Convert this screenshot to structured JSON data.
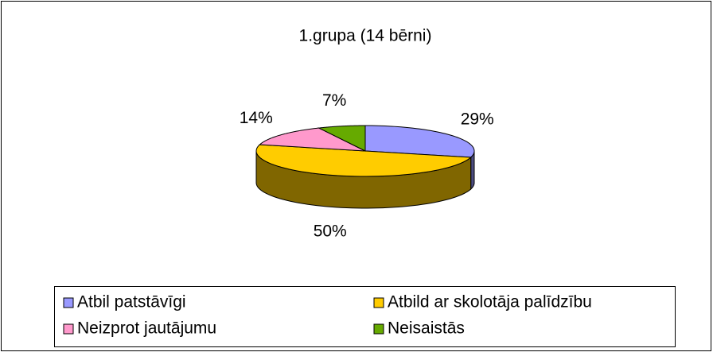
{
  "chart_data": {
    "type": "pie",
    "title": "1.grupa (14 bērni)",
    "categories": [
      "Atbil patstāvīgi",
      "Atbild ar skolotāja palīdzību",
      "Neizprot jautājumu",
      "Neisaistās"
    ],
    "values": [
      29,
      50,
      14,
      7
    ],
    "value_labels": [
      "29%",
      "50%",
      "14%",
      "7%"
    ],
    "colors": [
      "#9999ff",
      "#ffcc00",
      "#ff99cc",
      "#66aa00"
    ],
    "legend": "bottom"
  }
}
